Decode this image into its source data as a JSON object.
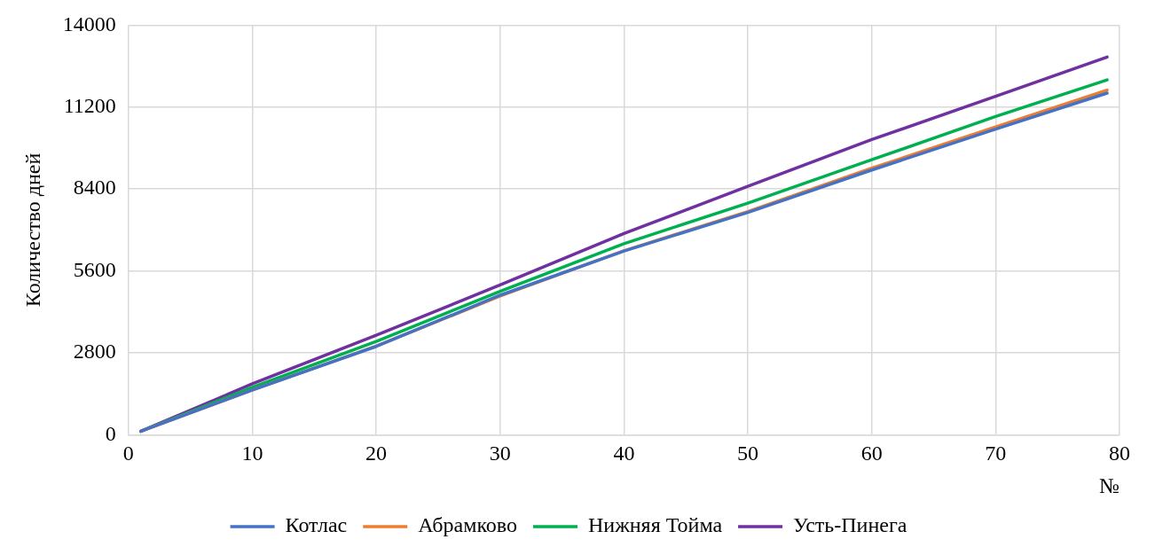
{
  "chart_data": {
    "type": "line",
    "xlabel": "№",
    "ylabel": "Количество дней",
    "x": [
      1,
      10,
      20,
      30,
      40,
      50,
      60,
      70,
      79
    ],
    "xlim": [
      0,
      80
    ],
    "xticks": [
      0,
      10,
      20,
      30,
      40,
      50,
      60,
      70,
      80
    ],
    "ylim": [
      0,
      14000
    ],
    "yticks": [
      0,
      2800,
      5600,
      8400,
      11200,
      14000
    ],
    "grid": true,
    "legend": "bottom",
    "marker": "none",
    "line_style": "solid",
    "series": [
      {
        "name": "Котлас",
        "color": "#4472c4",
        "values": [
          120,
          1530,
          3020,
          4770,
          6280,
          7600,
          9050,
          10450,
          11680
        ]
      },
      {
        "name": "Абрамково",
        "color": "#ed7d31",
        "values": [
          120,
          1530,
          3030,
          4740,
          6290,
          7630,
          9110,
          10520,
          11780
        ]
      },
      {
        "name": "Нижняя Тойма",
        "color": "#00b050",
        "values": [
          120,
          1620,
          3190,
          4900,
          6530,
          7920,
          9400,
          10880,
          12130
        ]
      },
      {
        "name": "Усть-Пинега",
        "color": "#7030a0",
        "values": [
          120,
          1740,
          3400,
          5120,
          6880,
          8490,
          10090,
          11570,
          12910
        ]
      }
    ]
  }
}
